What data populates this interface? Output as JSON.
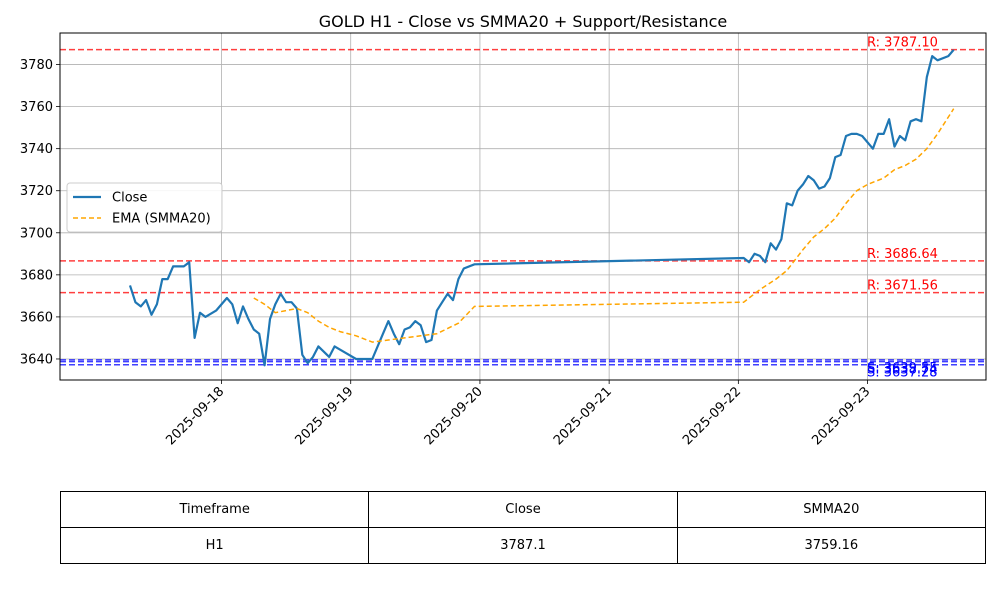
{
  "chart_data": {
    "type": "line",
    "title": "GOLD H1 - Close vs SMMA20 + Support/Resistance",
    "xlabel": "",
    "ylabel": "",
    "x_tick_labels": [
      "2025-09-18",
      "2025-09-19",
      "2025-09-20",
      "2025-09-21",
      "2025-09-22",
      "2025-09-23"
    ],
    "y_tick_labels": [
      "3640",
      "3660",
      "3680",
      "3700",
      "3720",
      "3740",
      "3760",
      "3780"
    ],
    "xlim": [
      "2025-09-16T18:00",
      "2025-09-23T22:00"
    ],
    "ylim": [
      3630,
      3795
    ],
    "grid": true,
    "legend_position": "center-left",
    "series": [
      {
        "name": "Close",
        "color": "#1f77b4",
        "style": "solid",
        "points": [
          [
            "2025-09-17T07:00",
            3675
          ],
          [
            "2025-09-17T08:00",
            3667
          ],
          [
            "2025-09-17T09:00",
            3665
          ],
          [
            "2025-09-17T10:00",
            3668
          ],
          [
            "2025-09-17T11:00",
            3661
          ],
          [
            "2025-09-17T12:00",
            3666
          ],
          [
            "2025-09-17T13:00",
            3678
          ],
          [
            "2025-09-17T14:00",
            3678
          ],
          [
            "2025-09-17T15:00",
            3684
          ],
          [
            "2025-09-17T16:00",
            3684
          ],
          [
            "2025-09-17T17:00",
            3684
          ],
          [
            "2025-09-17T18:00",
            3686
          ],
          [
            "2025-09-17T19:00",
            3650
          ],
          [
            "2025-09-17T20:00",
            3662
          ],
          [
            "2025-09-17T21:00",
            3660
          ],
          [
            "2025-09-17T23:00",
            3663
          ],
          [
            "2025-09-18T01:00",
            3669
          ],
          [
            "2025-09-18T02:00",
            3666
          ],
          [
            "2025-09-18T03:00",
            3657
          ],
          [
            "2025-09-18T04:00",
            3665
          ],
          [
            "2025-09-18T05:00",
            3659
          ],
          [
            "2025-09-18T06:00",
            3654
          ],
          [
            "2025-09-18T07:00",
            3652
          ],
          [
            "2025-09-18T08:00",
            3637
          ],
          [
            "2025-09-18T09:00",
            3659
          ],
          [
            "2025-09-18T10:00",
            3666
          ],
          [
            "2025-09-18T11:00",
            3671
          ],
          [
            "2025-09-18T12:00",
            3667
          ],
          [
            "2025-09-18T13:00",
            3667
          ],
          [
            "2025-09-18T14:00",
            3664
          ],
          [
            "2025-09-18T15:00",
            3642
          ],
          [
            "2025-09-18T16:00",
            3638
          ],
          [
            "2025-09-18T17:00",
            3641
          ],
          [
            "2025-09-18T18:00",
            3646
          ],
          [
            "2025-09-18T20:00",
            3641
          ],
          [
            "2025-09-18T21:00",
            3646
          ],
          [
            "2025-09-18T23:00",
            3643
          ],
          [
            "2025-09-19T01:00",
            3640
          ],
          [
            "2025-09-19T04:00",
            3640
          ],
          [
            "2025-09-19T06:00",
            3652
          ],
          [
            "2025-09-19T07:00",
            3658
          ],
          [
            "2025-09-19T08:00",
            3652
          ],
          [
            "2025-09-19T09:00",
            3647
          ],
          [
            "2025-09-19T10:00",
            3654
          ],
          [
            "2025-09-19T11:00",
            3655
          ],
          [
            "2025-09-19T12:00",
            3658
          ],
          [
            "2025-09-19T13:00",
            3656
          ],
          [
            "2025-09-19T14:00",
            3648
          ],
          [
            "2025-09-19T15:00",
            3649
          ],
          [
            "2025-09-19T16:00",
            3663
          ],
          [
            "2025-09-19T17:00",
            3667
          ],
          [
            "2025-09-19T18:00",
            3671
          ],
          [
            "2025-09-19T19:00",
            3668
          ],
          [
            "2025-09-19T20:00",
            3678
          ],
          [
            "2025-09-19T21:00",
            3683
          ],
          [
            "2025-09-19T23:00",
            3685
          ],
          [
            "2025-09-22T01:00",
            3688
          ],
          [
            "2025-09-22T02:00",
            3686
          ],
          [
            "2025-09-22T03:00",
            3690
          ],
          [
            "2025-09-22T04:00",
            3689
          ],
          [
            "2025-09-22T05:00",
            3686
          ],
          [
            "2025-09-22T06:00",
            3695
          ],
          [
            "2025-09-22T07:00",
            3692
          ],
          [
            "2025-09-22T08:00",
            3697
          ],
          [
            "2025-09-22T09:00",
            3714
          ],
          [
            "2025-09-22T10:00",
            3713
          ],
          [
            "2025-09-22T11:00",
            3720
          ],
          [
            "2025-09-22T12:00",
            3723
          ],
          [
            "2025-09-22T13:00",
            3727
          ],
          [
            "2025-09-22T14:00",
            3725
          ],
          [
            "2025-09-22T15:00",
            3721
          ],
          [
            "2025-09-22T16:00",
            3722
          ],
          [
            "2025-09-22T17:00",
            3726
          ],
          [
            "2025-09-22T18:00",
            3736
          ],
          [
            "2025-09-22T19:00",
            3737
          ],
          [
            "2025-09-22T20:00",
            3746
          ],
          [
            "2025-09-22T21:00",
            3747
          ],
          [
            "2025-09-22T22:00",
            3747
          ],
          [
            "2025-09-22T23:00",
            3746
          ],
          [
            "2025-09-23T01:00",
            3740
          ],
          [
            "2025-09-23T02:00",
            3747
          ],
          [
            "2025-09-23T03:00",
            3747
          ],
          [
            "2025-09-23T04:00",
            3754
          ],
          [
            "2025-09-23T05:00",
            3741
          ],
          [
            "2025-09-23T06:00",
            3746
          ],
          [
            "2025-09-23T07:00",
            3744
          ],
          [
            "2025-09-23T08:00",
            3753
          ],
          [
            "2025-09-23T09:00",
            3754
          ],
          [
            "2025-09-23T10:00",
            3753
          ],
          [
            "2025-09-23T11:00",
            3774
          ],
          [
            "2025-09-23T12:00",
            3784
          ],
          [
            "2025-09-23T13:00",
            3782
          ],
          [
            "2025-09-23T15:00",
            3784
          ],
          [
            "2025-09-23T16:00",
            3787
          ]
        ]
      },
      {
        "name": "EMA (SMMA20)",
        "color": "#ffa500",
        "style": "dashed",
        "points": [
          [
            "2025-09-18T06:00",
            3669
          ],
          [
            "2025-09-18T08:00",
            3666
          ],
          [
            "2025-09-18T10:00",
            3662
          ],
          [
            "2025-09-18T12:00",
            3663
          ],
          [
            "2025-09-18T14:00",
            3664
          ],
          [
            "2025-09-18T16:00",
            3662
          ],
          [
            "2025-09-18T18:00",
            3658
          ],
          [
            "2025-09-18T20:00",
            3655
          ],
          [
            "2025-09-18T22:00",
            3653
          ],
          [
            "2025-09-19T01:00",
            3651
          ],
          [
            "2025-09-19T04:00",
            3648
          ],
          [
            "2025-09-19T07:00",
            3649
          ],
          [
            "2025-09-19T10:00",
            3650
          ],
          [
            "2025-09-19T13:00",
            3651
          ],
          [
            "2025-09-19T16:00",
            3652
          ],
          [
            "2025-09-19T20:00",
            3657
          ],
          [
            "2025-09-19T23:00",
            3665
          ],
          [
            "2025-09-22T01:00",
            3667
          ],
          [
            "2025-09-22T04:00",
            3673
          ],
          [
            "2025-09-22T07:00",
            3678
          ],
          [
            "2025-09-22T09:00",
            3682
          ],
          [
            "2025-09-22T12:00",
            3692
          ],
          [
            "2025-09-22T14:00",
            3698
          ],
          [
            "2025-09-22T16:00",
            3702
          ],
          [
            "2025-09-22T18:00",
            3707
          ],
          [
            "2025-09-22T20:00",
            3714
          ],
          [
            "2025-09-22T22:00",
            3720
          ],
          [
            "2025-09-23T00:00",
            3723
          ],
          [
            "2025-09-23T03:00",
            3726
          ],
          [
            "2025-09-23T05:00",
            3730
          ],
          [
            "2025-09-23T07:00",
            3732
          ],
          [
            "2025-09-23T09:00",
            3735
          ],
          [
            "2025-09-23T11:00",
            3740
          ],
          [
            "2025-09-23T13:00",
            3747
          ],
          [
            "2025-09-23T15:00",
            3755
          ],
          [
            "2025-09-23T16:00",
            3759
          ]
        ]
      }
    ],
    "levels": [
      {
        "kind": "resistance",
        "value": 3787.1,
        "label": "R: 3787.10",
        "color": "#ff0000"
      },
      {
        "kind": "resistance",
        "value": 3686.64,
        "label": "R: 3686.64",
        "color": "#ff0000"
      },
      {
        "kind": "resistance",
        "value": 3671.56,
        "label": "R: 3671.56",
        "color": "#ff0000"
      },
      {
        "kind": "support",
        "value": 3639.55,
        "label": "S: 3639.55",
        "color": "#0000ff"
      },
      {
        "kind": "support",
        "value": 3638.74,
        "label": "S: 3638.74",
        "color": "#0000ff"
      },
      {
        "kind": "support",
        "value": 3637.28,
        "label": "S: 3637.28",
        "color": "#0000ff"
      }
    ]
  },
  "table": {
    "headers": [
      "Timeframe",
      "Close",
      "SMMA20"
    ],
    "row": [
      "H1",
      "3787.1",
      "3759.16"
    ]
  }
}
